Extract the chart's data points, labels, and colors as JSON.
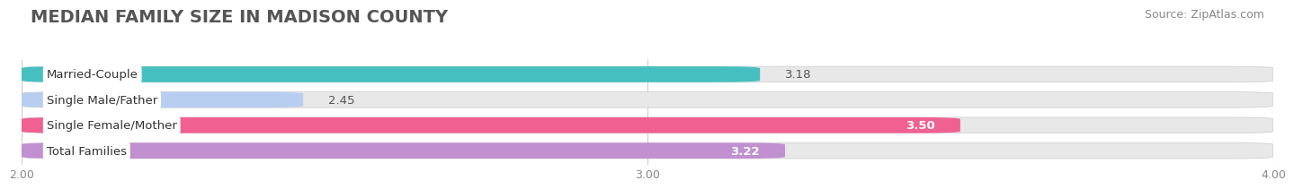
{
  "title": "MEDIAN FAMILY SIZE IN MADISON COUNTY",
  "source": "Source: ZipAtlas.com",
  "categories": [
    "Married-Couple",
    "Single Male/Father",
    "Single Female/Mother",
    "Total Families"
  ],
  "values": [
    3.18,
    2.45,
    3.5,
    3.22
  ],
  "bar_colors": [
    "#45bfbf",
    "#b8cef0",
    "#f06090",
    "#c090d0"
  ],
  "label_colors": [
    "black",
    "black",
    "black",
    "black"
  ],
  "value_white": [
    false,
    false,
    true,
    true
  ],
  "xlim_data": [
    2.0,
    4.0
  ],
  "xstart": 2.0,
  "xticks": [
    2.0,
    3.0,
    4.0
  ],
  "xtick_labels": [
    "2.00",
    "3.00",
    "4.00"
  ],
  "bar_height": 0.62,
  "background_color": "#ffffff",
  "bar_bg_color": "#e8e8e8",
  "title_fontsize": 14,
  "source_fontsize": 9,
  "label_fontsize": 9.5,
  "value_fontsize": 9.5
}
